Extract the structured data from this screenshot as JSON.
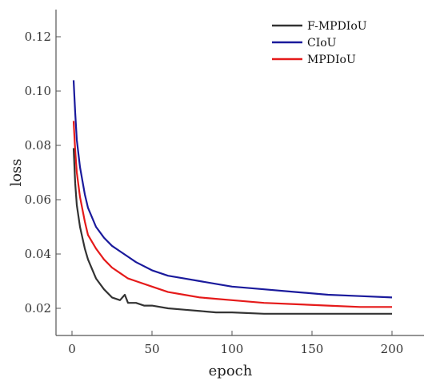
{
  "chart_data": {
    "type": "line",
    "title": "",
    "xlabel": "epoch",
    "ylabel": "loss",
    "xlim": [
      -10,
      220
    ],
    "ylim": [
      0.01,
      0.13
    ],
    "x_ticks": [
      0,
      50,
      100,
      150,
      200
    ],
    "x_tick_labels": [
      "0",
      "50",
      "100",
      "150",
      "200"
    ],
    "y_ticks": [
      0.02,
      0.04,
      0.06,
      0.08,
      0.1,
      0.12
    ],
    "y_tick_labels": [
      "0.02",
      "0.04",
      "0.06",
      "0.08",
      "0.10",
      "0.12"
    ],
    "grid": false,
    "legend_position": "top-right",
    "series": [
      {
        "name": "F-MPDIoU",
        "color": "#333333",
        "x": [
          1,
          2,
          3,
          5,
          8,
          10,
          15,
          20,
          25,
          30,
          33,
          35,
          40,
          45,
          50,
          60,
          70,
          80,
          90,
          100,
          120,
          140,
          160,
          180,
          200
        ],
        "y": [
          0.079,
          0.066,
          0.058,
          0.05,
          0.042,
          0.038,
          0.031,
          0.027,
          0.024,
          0.023,
          0.025,
          0.022,
          0.022,
          0.021,
          0.021,
          0.02,
          0.0195,
          0.019,
          0.0185,
          0.0185,
          0.018,
          0.018,
          0.018,
          0.018,
          0.018
        ]
      },
      {
        "name": "CIoU",
        "color": "#1a1a9c",
        "x": [
          1,
          2,
          3,
          5,
          8,
          10,
          15,
          20,
          25,
          30,
          35,
          40,
          50,
          60,
          70,
          80,
          90,
          100,
          120,
          140,
          160,
          180,
          200
        ],
        "y": [
          0.104,
          0.092,
          0.082,
          0.072,
          0.062,
          0.057,
          0.05,
          0.046,
          0.043,
          0.041,
          0.039,
          0.037,
          0.034,
          0.032,
          0.031,
          0.03,
          0.029,
          0.028,
          0.027,
          0.026,
          0.025,
          0.0245,
          0.024
        ]
      },
      {
        "name": "MPDIoU",
        "color": "#e51a1a",
        "x": [
          1,
          2,
          3,
          5,
          8,
          10,
          15,
          20,
          25,
          30,
          35,
          40,
          50,
          60,
          70,
          80,
          90,
          100,
          120,
          140,
          160,
          180,
          200
        ],
        "y": [
          0.089,
          0.078,
          0.07,
          0.061,
          0.052,
          0.047,
          0.042,
          0.038,
          0.035,
          0.033,
          0.031,
          0.03,
          0.028,
          0.026,
          0.025,
          0.024,
          0.0235,
          0.023,
          0.022,
          0.0215,
          0.021,
          0.0205,
          0.0205
        ]
      }
    ]
  }
}
